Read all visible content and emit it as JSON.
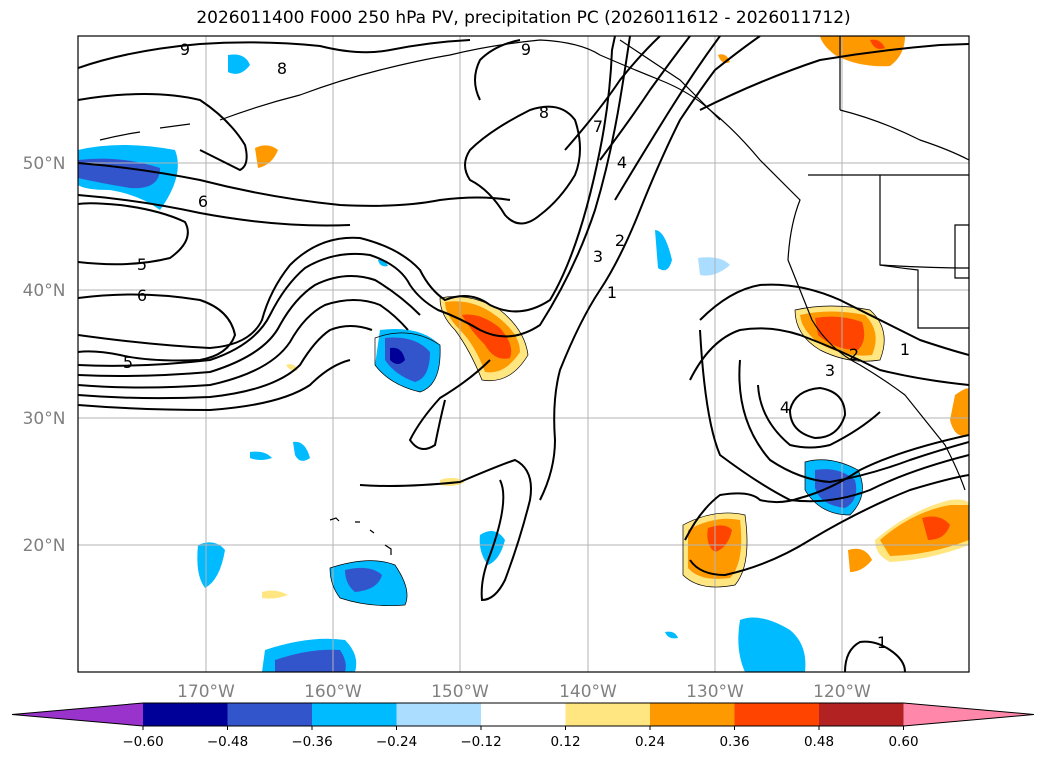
{
  "title": "2026011400 F000 250 hPa PV, precipitation PC (2026011612 - 2026011712)",
  "lat_labels": [
    "50°N",
    "40°N",
    "30°N",
    "20°N"
  ],
  "lon_labels": [
    "170°W",
    "160°W",
    "150°W",
    "140°W",
    "130°W",
    "120°W"
  ],
  "contour_labels": [
    "9",
    "8",
    "9",
    "8",
    "7",
    "6",
    "5",
    "6",
    "5",
    "4",
    "3",
    "2",
    "1",
    "4",
    "3",
    "2",
    "1",
    "1"
  ],
  "colorbar": {
    "ticks": [
      "−0.60",
      "−0.48",
      "−0.36",
      "−0.24",
      "−0.12",
      "0.12",
      "0.24",
      "0.36",
      "0.48",
      "0.60"
    ],
    "colors": [
      "#9933cc",
      "#000099",
      "#3355cc",
      "#00bbff",
      "#aaddff",
      "#ffffff",
      "#ffe680",
      "#ff9900",
      "#ff4400",
      "#b22222",
      "#ff88aa"
    ]
  }
}
